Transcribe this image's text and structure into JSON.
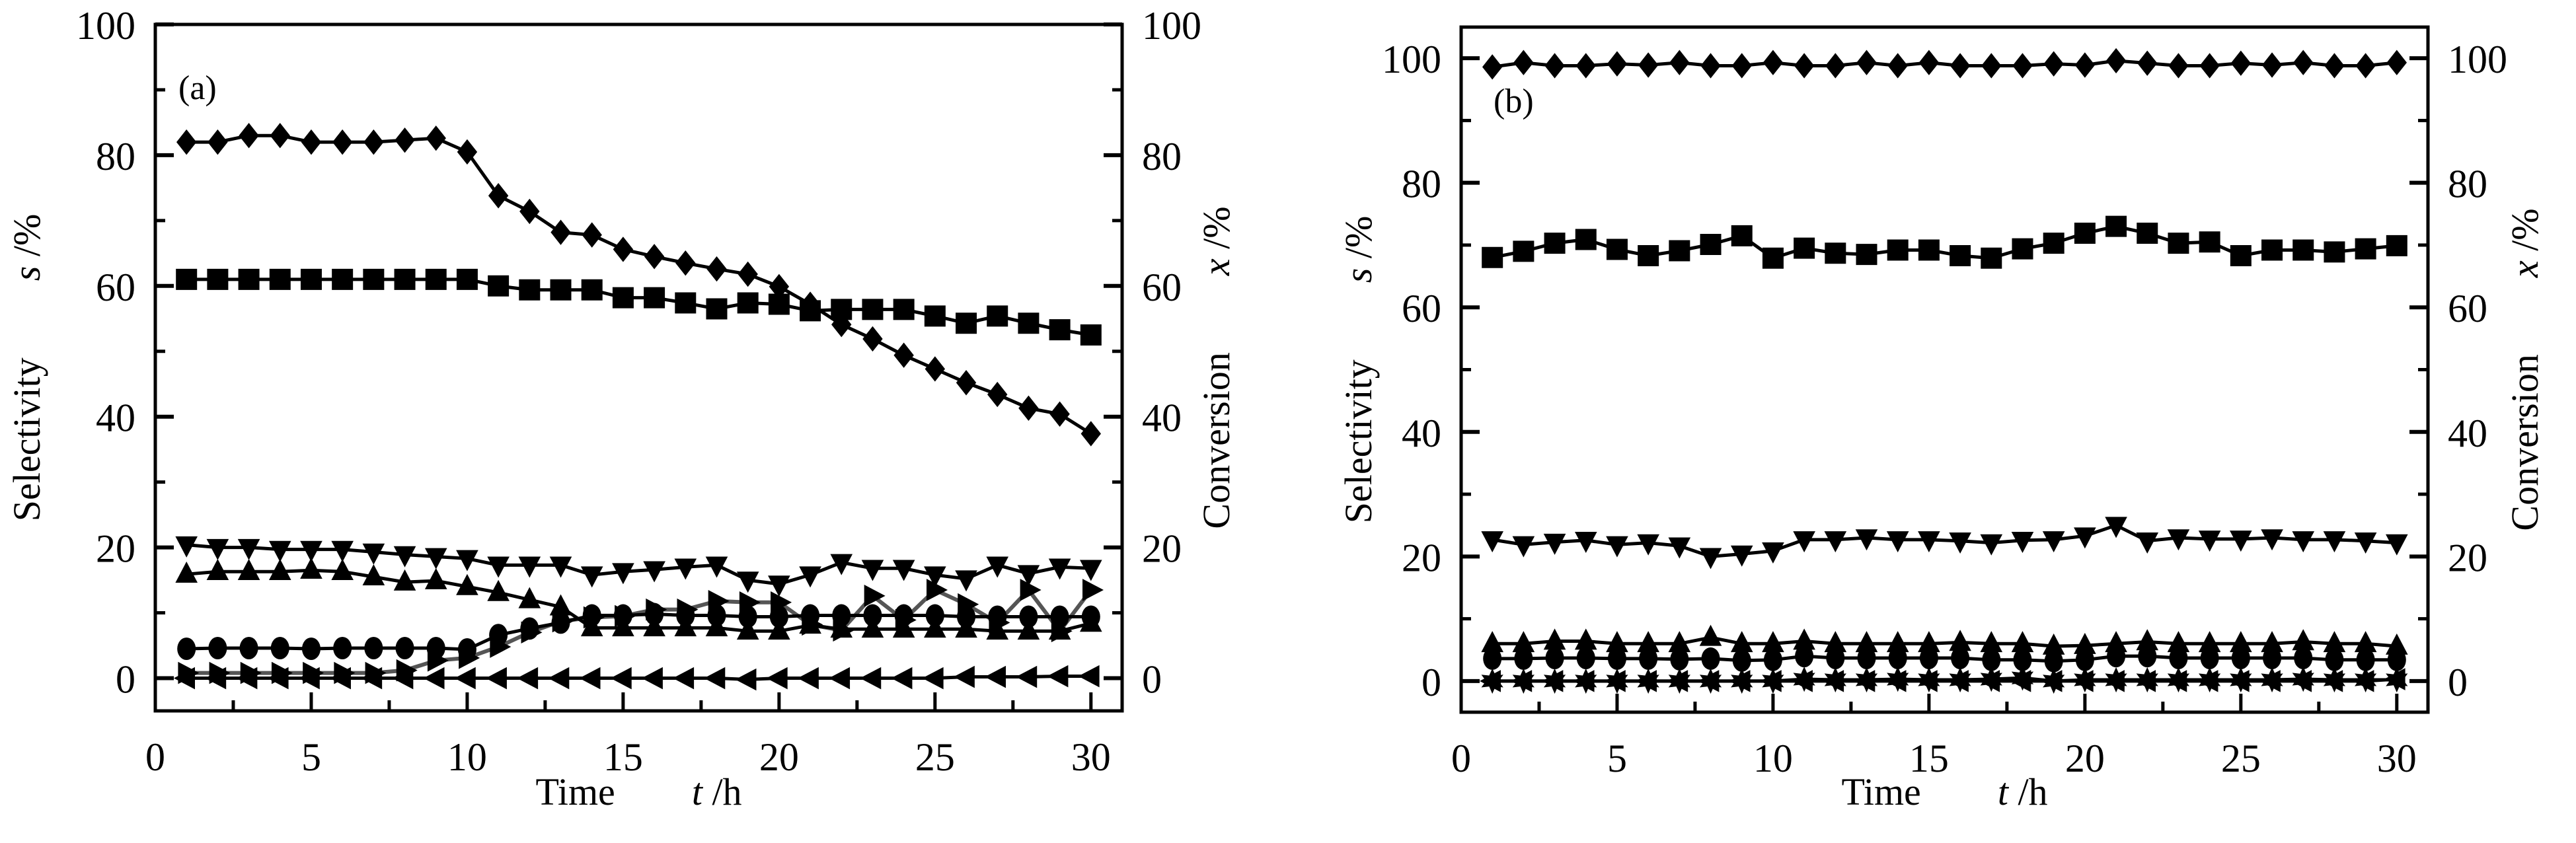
{
  "figure": {
    "description": "Time-on-stream selectivity and conversion, two panels"
  },
  "chart_data": [
    {
      "type": "line",
      "panel_label": "(a)",
      "xlabel": "Time",
      "xlabel_var": "t",
      "xlabel_unit": " /h",
      "ylabel": "Selectivity",
      "ylabel_var": "s",
      "ylabel_unit": " /%",
      "y2label": "Conversion",
      "y2label_var": "x",
      "y2label_unit": " /%",
      "xlim": [
        0,
        31
      ],
      "ylim": [
        -5,
        100
      ],
      "y2lim": [
        -5,
        100
      ],
      "xticks": [
        0,
        5,
        10,
        15,
        20,
        25,
        30
      ],
      "yticks": [
        0,
        20,
        40,
        60,
        80,
        100
      ],
      "yminor": [
        10,
        30,
        50,
        70,
        90
      ],
      "xminor": [
        2.5,
        7.5,
        12.5,
        17.5,
        22.5,
        27.5
      ],
      "grid": false,
      "legend": "none",
      "x": [
        1,
        2,
        3,
        4,
        5,
        6,
        7,
        8,
        9,
        10,
        11,
        12,
        13,
        14,
        15,
        16,
        17,
        18,
        19,
        20,
        21,
        22,
        23,
        24,
        25,
        26,
        27,
        28,
        29,
        30
      ],
      "series": [
        {
          "name": "diamond",
          "marker": "diamond",
          "color": "#000000",
          "values": [
            82,
            82,
            83,
            83,
            82,
            82,
            82,
            82.3,
            82.6,
            80.5,
            73.8,
            71.4,
            68.2,
            67.8,
            65.6,
            64.5,
            63.5,
            62.6,
            61.8,
            59.9,
            57.2,
            54.1,
            51.9,
            49.4,
            47.3,
            45.2,
            43.4,
            41.3,
            40.4,
            37.4
          ]
        },
        {
          "name": "square",
          "marker": "square",
          "color": "#000000",
          "values": [
            61,
            61,
            61,
            61,
            61,
            61,
            61,
            61,
            61,
            61,
            60,
            59.4,
            59.4,
            59.4,
            58.2,
            58.2,
            57.4,
            56.5,
            57.4,
            57.2,
            56.2,
            56.4,
            56.4,
            56.4,
            55.4,
            54.3,
            55.4,
            54.3,
            53.3,
            52.5
          ]
        },
        {
          "name": "triangle-down",
          "marker": "triangle-down",
          "color": "#000000",
          "values": [
            20.4,
            20,
            20,
            19.7,
            19.7,
            19.7,
            19.3,
            18.9,
            18.6,
            18.3,
            17.3,
            17.3,
            17.3,
            15.8,
            16.3,
            16.6,
            17,
            17.3,
            15,
            14.4,
            15.8,
            17.7,
            16.8,
            16.8,
            15.8,
            15.2,
            17.3,
            16,
            17,
            16.8
          ]
        },
        {
          "name": "triangle-up",
          "marker": "triangle-up",
          "color": "#000000",
          "values": [
            15.9,
            16.3,
            16.3,
            16.3,
            16.5,
            16.3,
            15.5,
            14.7,
            14.9,
            14,
            13.1,
            12,
            10.9,
            7.7,
            7.7,
            7.7,
            7.7,
            7.7,
            7.2,
            7.2,
            8.1,
            7.5,
            7.5,
            7.5,
            7.5,
            7.5,
            7.2,
            7.2,
            7.2,
            8.4
          ]
        },
        {
          "name": "circle",
          "marker": "circle",
          "color": "#000000",
          "values": [
            4.5,
            4.6,
            4.6,
            4.6,
            4.5,
            4.6,
            4.6,
            4.6,
            4.6,
            4.4,
            6.6,
            7.6,
            8.5,
            9.6,
            9.6,
            9.8,
            9.6,
            9.6,
            9.4,
            9.4,
            9.6,
            9.6,
            9.6,
            9.6,
            9.6,
            9.4,
            9.4,
            9.4,
            9.4,
            9.4
          ]
        },
        {
          "name": "triangle-right",
          "marker": "triangle-right",
          "color": "#555555",
          "values": [
            0.8,
            0.8,
            0.8,
            0.8,
            0.8,
            0.8,
            0.8,
            1.2,
            2.7,
            3.1,
            4.8,
            7,
            8.7,
            9.3,
            9.5,
            10.5,
            10.5,
            11.8,
            11.6,
            11.6,
            8.2,
            7.3,
            12.6,
            8.9,
            13.5,
            11.3,
            8.5,
            13.5,
            7.2,
            13.5
          ]
        },
        {
          "name": "triangle-left",
          "marker": "triangle-left",
          "color": "#000000",
          "values": [
            0,
            0,
            0,
            0,
            0,
            0,
            0,
            0,
            0,
            0,
            0,
            0,
            0,
            0,
            0,
            0,
            0,
            0,
            -0.2,
            0,
            0,
            0,
            0,
            0,
            0,
            0.2,
            0.2,
            0.2,
            0.3,
            0.3
          ]
        }
      ]
    },
    {
      "type": "line",
      "panel_label": "(b)",
      "xlabel": "Time",
      "xlabel_var": "t",
      "xlabel_unit": " /h",
      "ylabel": "Selectivity",
      "ylabel_var": "s",
      "ylabel_unit": " /%",
      "y2label": "Conversion",
      "y2label_var": "x",
      "y2label_unit": " /%",
      "xlim": [
        0,
        31
      ],
      "ylim": [
        -5,
        105
      ],
      "y2lim": [
        -5,
        105
      ],
      "xticks": [
        0,
        5,
        10,
        15,
        20,
        25,
        30
      ],
      "yticks": [
        0,
        20,
        40,
        60,
        80,
        100
      ],
      "yminor": [
        10,
        30,
        50,
        70,
        90
      ],
      "xminor": [
        2.5,
        7.5,
        12.5,
        17.5,
        22.5,
        27.5
      ],
      "grid": false,
      "legend": "none",
      "x": [
        1,
        2,
        3,
        4,
        5,
        6,
        7,
        8,
        9,
        10,
        11,
        12,
        13,
        14,
        15,
        16,
        17,
        18,
        19,
        20,
        21,
        22,
        23,
        24,
        25,
        26,
        27,
        28,
        29,
        30
      ],
      "series": [
        {
          "name": "diamond",
          "marker": "diamond",
          "color": "#000000",
          "values": [
            98.6,
            99.3,
            98.8,
            98.8,
            99.1,
            98.9,
            99.3,
            98.8,
            98.8,
            99.3,
            98.8,
            98.8,
            99.3,
            98.8,
            99.3,
            98.8,
            98.8,
            98.8,
            99.1,
            98.9,
            99.6,
            99.2,
            98.8,
            98.8,
            99.2,
            98.9,
            99.3,
            98.8,
            98.8,
            99.3
          ]
        },
        {
          "name": "square",
          "marker": "square",
          "color": "#000000",
          "values": [
            68,
            69,
            70.3,
            70.9,
            69.3,
            68.3,
            69.1,
            70.1,
            71.5,
            67.9,
            69.5,
            68.7,
            68.5,
            69.2,
            69.2,
            68.3,
            67.9,
            69.4,
            70.3,
            71.9,
            73,
            71.9,
            70.3,
            70.5,
            68.3,
            69.2,
            69.2,
            68.9,
            69.4,
            69.9
          ]
        },
        {
          "name": "triangle-down",
          "marker": "triangle-down",
          "color": "#000000",
          "values": [
            22.7,
            21.9,
            22.3,
            22.6,
            21.9,
            22.2,
            21.7,
            20,
            20.4,
            20.9,
            22.7,
            22.7,
            23,
            22.7,
            22.7,
            22.5,
            22.2,
            22.6,
            22.7,
            23.3,
            25,
            22.5,
            23,
            22.8,
            22.8,
            23,
            22.7,
            22.7,
            22.5,
            22.2
          ]
        },
        {
          "name": "triangle-up",
          "marker": "triangle-up",
          "color": "#000000",
          "values": [
            6,
            6,
            6.4,
            6.4,
            6,
            6,
            6,
            7,
            6,
            6,
            6.4,
            6,
            6,
            6,
            6,
            6.2,
            6,
            6,
            5.6,
            5.7,
            6,
            6.3,
            6,
            6,
            6,
            6,
            6.3,
            6,
            6,
            5.6
          ]
        },
        {
          "name": "circle",
          "marker": "circle",
          "color": "#000000",
          "values": [
            3.6,
            3.6,
            3.7,
            3.7,
            3.6,
            3.6,
            3.5,
            3.6,
            3.3,
            3.4,
            4,
            3.7,
            3.7,
            3.7,
            3.7,
            3.7,
            3.4,
            3.4,
            3.2,
            3.4,
            4,
            4,
            3.7,
            3.7,
            3.7,
            3.7,
            3.7,
            3.4,
            3.4,
            3.4
          ]
        },
        {
          "name": "star",
          "marker": "star",
          "color": "#000000",
          "values": [
            0,
            0,
            0,
            0,
            0,
            0,
            0,
            0,
            0,
            0,
            0.3,
            0.2,
            0.2,
            0.3,
            0.2,
            0.2,
            0.3,
            0.5,
            0,
            0.2,
            0.2,
            0.2,
            0.2,
            0.2,
            0.2,
            0.2,
            0.3,
            0.2,
            0.2,
            0.2
          ]
        },
        {
          "name": "triangle-left",
          "marker": "triangle-left",
          "color": "#000000",
          "values": [
            0,
            0,
            0,
            0,
            0,
            0,
            0,
            0,
            0,
            0,
            0,
            0,
            0,
            0,
            0,
            0,
            0,
            0,
            0,
            0,
            0,
            0,
            0,
            0,
            0,
            0,
            0,
            0,
            0,
            0.3
          ]
        }
      ]
    }
  ]
}
